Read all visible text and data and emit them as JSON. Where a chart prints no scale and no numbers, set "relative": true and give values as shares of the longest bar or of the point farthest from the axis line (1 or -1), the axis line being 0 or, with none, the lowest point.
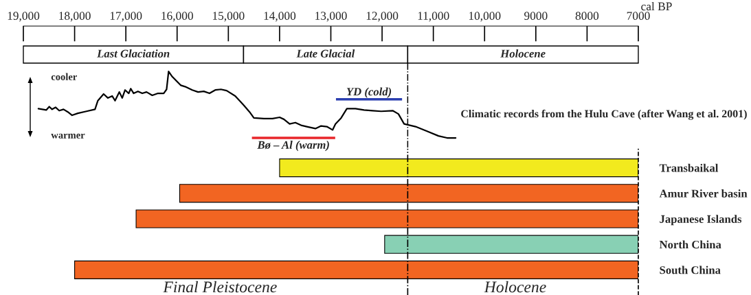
{
  "chart_data": [
    {
      "type": "line",
      "relative": true,
      "xlabel": "cal BP",
      "xlim": [
        19000,
        7000
      ],
      "xticks": [
        {
          "value": 19000,
          "label": "19,000"
        },
        {
          "value": 18000,
          "label": "18,000"
        },
        {
          "value": 17000,
          "label": "17,000"
        },
        {
          "value": 16000,
          "label": "16,000"
        },
        {
          "value": 15000,
          "label": "15,000"
        },
        {
          "value": 14000,
          "label": "14,000"
        },
        {
          "value": 13000,
          "label": "13,000"
        },
        {
          "value": 12000,
          "label": "12,000"
        },
        {
          "value": 11000,
          "label": "11,000"
        },
        {
          "value": 10000,
          "label": "10,000"
        },
        9000,
        8000,
        7000
      ],
      "tick_labels": "x",
      "grid": false,
      "series": [
        {
          "color": "#000000",
          "x": [
            18707,
            18551,
            18495,
            18439,
            18372,
            18300,
            18216,
            18132,
            18049,
            17937,
            17769,
            17602,
            17546,
            17434,
            17350,
            17267,
            17211,
            17127,
            17071,
            17015,
            16943,
            16904,
            16848,
            16764,
            16680,
            16596,
            16485,
            16373,
            16261,
            16205,
            16166,
            16094,
            15926,
            15842,
            15703,
            15591,
            15479,
            15368,
            15256,
            15144,
            15033,
            14865,
            14698,
            14586,
            14502,
            14307,
            14139,
            13999,
            13916,
            13804,
            13692,
            13581,
            13469,
            13301,
            13190,
            13078,
            12966,
            12910,
            12799,
            12687,
            12519,
            12352,
            12184,
            12017,
            11793,
            11681,
            11570,
            11458,
            11346,
            11123,
            10900,
            10732,
            10564
          ],
          "values": [
            0.44,
            0.42,
            0.47,
            0.43,
            0.46,
            0.41,
            0.43,
            0.39,
            0.34,
            0.37,
            0.4,
            0.43,
            0.56,
            0.66,
            0.6,
            0.63,
            0.56,
            0.69,
            0.6,
            0.72,
            0.67,
            0.74,
            0.67,
            0.7,
            0.67,
            0.69,
            0.64,
            0.67,
            0.67,
            0.73,
            1,
            0.92,
            0.79,
            0.77,
            0.72,
            0.69,
            0.7,
            0.67,
            0.72,
            0.73,
            0.71,
            0.63,
            0.49,
            0.39,
            0.3,
            0.29,
            0.29,
            0.31,
            0.28,
            0.21,
            0.23,
            0.19,
            0.17,
            0.14,
            0.18,
            0.17,
            0.12,
            0.21,
            0.3,
            0.44,
            0.44,
            0.42,
            0.41,
            0.4,
            0.41,
            0.36,
            0.21,
            0.19,
            0.17,
            0.1,
            0.03,
            0,
            0
          ]
        },
        {
          "name": "Bø – Al (warm)",
          "color": "#e8262a",
          "x": [
            14540,
            12915
          ],
          "values": [
            0,
            0
          ]
        },
        {
          "name": "YD (cold)",
          "color": "#2b3fb0",
          "x": [
            12900,
            11610
          ],
          "values": [
            0.58,
            0.58
          ]
        }
      ],
      "ref_lines": [
        {
          "axis": "x",
          "value": 11500,
          "line_style": "dashdot",
          "color": "#000000"
        }
      ],
      "annotations": [
        "cooler",
        "warmer",
        "Climatic records from the Hulu Cave (after Wang et al. 2001)",
        "Last Glaciation",
        "Late Glacial",
        "Holocene"
      ]
    },
    {
      "type": "bar",
      "orientation": "horizontal",
      "xlim": [
        19000,
        7000
      ],
      "tick_labels": "y",
      "grid": false,
      "categories": [
        "Transbaikal",
        "Amur River basin",
        "Japanese Islands",
        "North China",
        "South China"
      ],
      "base": [
        7000,
        7000,
        7000,
        7000,
        7000
      ],
      "values": [
        7000,
        8950,
        9800,
        4950,
        11000
      ],
      "colors": [
        "#f2ea1e",
        "#f26522",
        "#f26522",
        "#88d0b4",
        "#f26522"
      ],
      "annotations": [
        "Final Pleistocene",
        "Holocene"
      ],
      "ref_lines": [
        {
          "axis": "x",
          "value": 11500,
          "line_style": "dashdot",
          "color": "#000000"
        },
        {
          "axis": "x",
          "value": 7000,
          "line_style": "dashed",
          "color": "#000000"
        }
      ]
    }
  ]
}
